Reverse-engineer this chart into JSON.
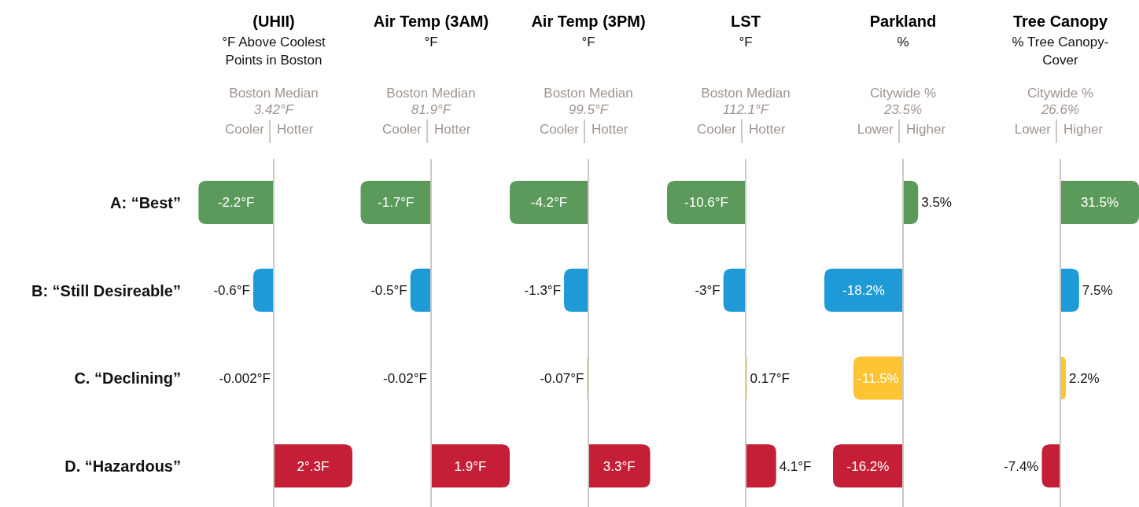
{
  "chart_data": [
    {
      "type": "bar",
      "orientation": "horizontal",
      "title": "(UHII)",
      "subtitle": "°F Above Coolest Points in Boston",
      "annotations": [
        "Boston Median",
        "3.42°F",
        "Cooler",
        "Hotter"
      ],
      "categories": [
        "A: “Best”",
        "B: “Still Desireable”",
        "C. “Declining”",
        "D. “Hazardous”"
      ],
      "values": [
        -2.2,
        -0.6,
        -0.002,
        2.3
      ],
      "value_labels": [
        "-2.2°F",
        "-0.6°F",
        "-0.002°F",
        "2°.3F"
      ],
      "colors": [
        "#5b9a5b",
        "#1e9ad6",
        "#fec433",
        "#c41f36"
      ],
      "tick_labels": "y",
      "grid": false,
      "legend": false
    },
    {
      "type": "bar",
      "orientation": "horizontal",
      "title": "Air Temp (3AM)",
      "subtitle": "°F",
      "annotations": [
        "Boston Median",
        "81.9°F",
        "Cooler",
        "Hotter"
      ],
      "values": [
        -1.7,
        -0.5,
        -0.02,
        1.9
      ],
      "value_labels": [
        "-1.7°F",
        "-0.5°F",
        "-0.02°F",
        "1.9°F"
      ],
      "colors": [
        "#5b9a5b",
        "#1e9ad6",
        "#fec433",
        "#c41f36"
      ],
      "tick_labels": false,
      "grid": false,
      "legend": false
    },
    {
      "type": "bar",
      "orientation": "horizontal",
      "title": "Air Temp (3PM)",
      "subtitle": "°F",
      "annotations": [
        "Boston Median",
        "99.5°F",
        "Cooler",
        "Hotter"
      ],
      "values": [
        -4.2,
        -1.3,
        -0.07,
        3.3
      ],
      "value_labels": [
        "-4.2°F",
        "-1.3°F",
        "-0.07°F",
        "3.3°F"
      ],
      "colors": [
        "#5b9a5b",
        "#1e9ad6",
        "#fec433",
        "#c41f36"
      ],
      "tick_labels": false,
      "grid": false,
      "legend": false
    },
    {
      "type": "bar",
      "orientation": "horizontal",
      "title": "LST",
      "subtitle": "°F",
      "annotations": [
        "Boston Median",
        "112.1°F",
        "Cooler",
        "Hotter"
      ],
      "values": [
        -10.6,
        -3,
        0.17,
        4.1
      ],
      "value_labels": [
        "-10.6°F",
        "-3°F",
        "0.17°F",
        "4.1°F"
      ],
      "colors": [
        "#5b9a5b",
        "#1e9ad6",
        "#fec433",
        "#c41f36"
      ],
      "tick_labels": false,
      "grid": false,
      "legend": false
    },
    {
      "type": "bar",
      "orientation": "horizontal",
      "title": "Parkland",
      "subtitle": "%",
      "annotations": [
        "Citywide %",
        "23.5%",
        "Lower",
        "Higher"
      ],
      "values": [
        3.5,
        -18.2,
        -11.5,
        -16.2
      ],
      "value_labels": [
        "3.5%",
        "-18.2%",
        "-11.5%",
        "-16.2%"
      ],
      "colors": [
        "#5b9a5b",
        "#1e9ad6",
        "#fec433",
        "#c41f36"
      ],
      "tick_labels": false,
      "grid": false,
      "legend": false
    },
    {
      "type": "bar",
      "orientation": "horizontal",
      "title": "Tree Canopy",
      "subtitle": "% Tree Canopy-Cover",
      "annotations": [
        "Citywide %",
        "26.6%",
        "Lower",
        "Higher"
      ],
      "values": [
        31.5,
        7.5,
        2.2,
        -7.4
      ],
      "value_labels": [
        "31.5%",
        "7.5%",
        "2.2%",
        "-7.4%"
      ],
      "colors": [
        "#5b9a5b",
        "#1e9ad6",
        "#fec433",
        "#c41f36"
      ],
      "tick_labels": false,
      "grid": false,
      "legend": false
    }
  ]
}
